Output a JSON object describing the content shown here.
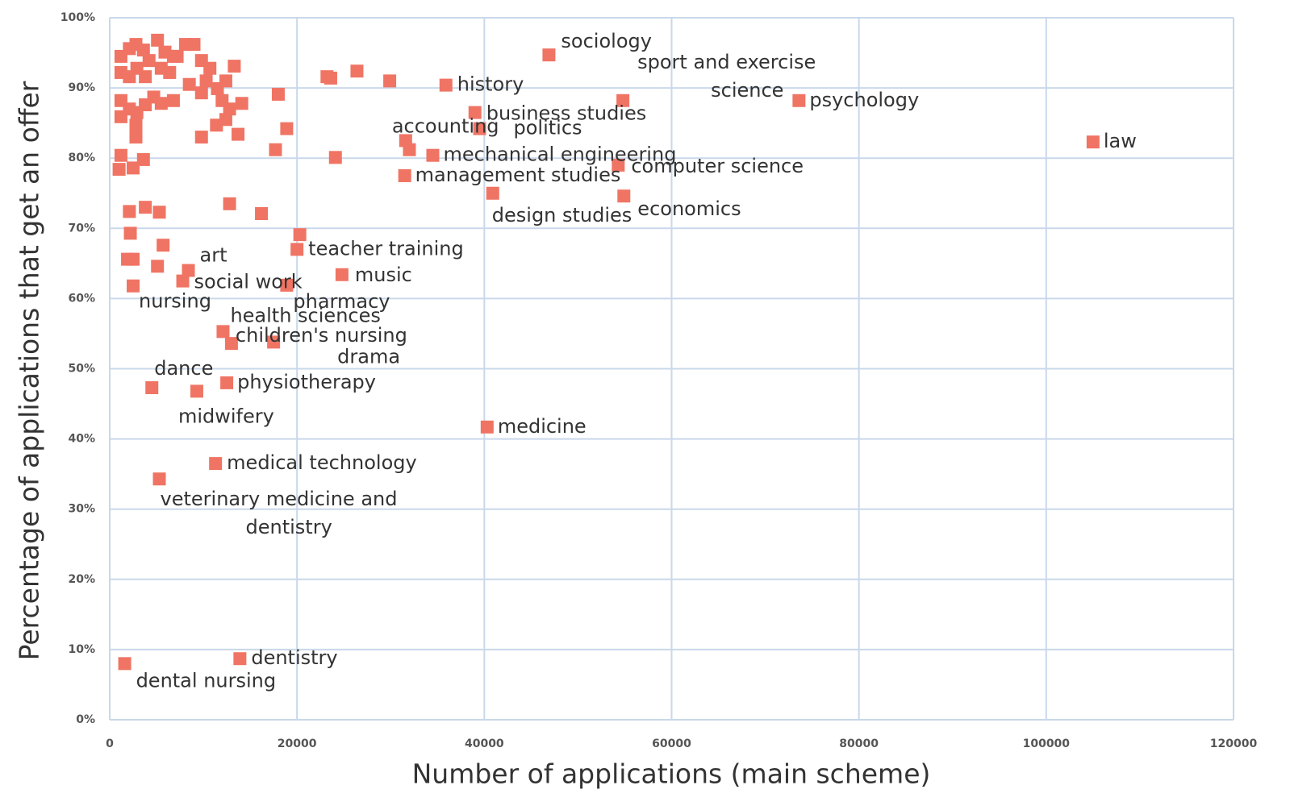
{
  "chart_data": {
    "type": "scatter",
    "xlabel": "Number of applications (main scheme)",
    "ylabel": "Percentage of applications that get an offer",
    "xlim": [
      0,
      120000
    ],
    "ylim": [
      0,
      100
    ],
    "xticks": [
      0,
      20000,
      40000,
      60000,
      80000,
      100000,
      120000
    ],
    "yticks": [
      {
        "value": 0,
        "label": "0%"
      },
      {
        "value": 10,
        "label": "10%"
      },
      {
        "value": 20,
        "label": "20%"
      },
      {
        "value": 30,
        "label": "30%"
      },
      {
        "value": 40,
        "label": "40%"
      },
      {
        "value": 50,
        "label": "50%"
      },
      {
        "value": 60,
        "label": "60%"
      },
      {
        "value": 70,
        "label": "70%"
      },
      {
        "value": 80,
        "label": "80%"
      },
      {
        "value": 90,
        "label": "90%"
      },
      {
        "value": 100,
        "label": "100%"
      }
    ],
    "grid": true,
    "color": "#f07464",
    "x": [
      46900,
      54800,
      73600,
      105000,
      35900,
      39000,
      31600,
      39500,
      34500,
      54300,
      31500,
      40900,
      54900,
      20000,
      8400,
      7800,
      24800,
      2500,
      18900,
      12100,
      13000,
      17500,
      4500,
      12500,
      9300,
      40300,
      11300,
      5300,
      13900,
      1600,
      1200,
      2100,
      2800,
      3600,
      4200,
      5100,
      5900,
      6800,
      8100,
      9000,
      9800,
      10700,
      1200,
      2100,
      2900,
      3800,
      5500,
      6400,
      7200,
      8500,
      10300,
      11500,
      12400,
      13300,
      1200,
      2100,
      2900,
      3800,
      4700,
      5500,
      6800,
      9800,
      12000,
      12800,
      14100,
      1200,
      2800,
      2800,
      9800,
      11400,
      12400,
      13700,
      18000,
      18900,
      23200,
      23600,
      26400,
      29900,
      1200,
      1000,
      2500,
      3600,
      17700,
      24100,
      32000,
      2100,
      3800,
      5300,
      12800,
      16200,
      2200,
      5700,
      1900,
      2500,
      5100,
      20300
    ],
    "values": [
      94.7,
      88.2,
      88.2,
      82.3,
      90.4,
      86.5,
      82.5,
      84.2,
      80.4,
      79.0,
      77.5,
      75.0,
      74.6,
      67.0,
      64.0,
      62.5,
      63.4,
      61.8,
      61.9,
      55.3,
      53.6,
      53.8,
      47.3,
      48.0,
      46.8,
      41.7,
      36.5,
      34.3,
      8.7,
      8.0,
      94.5,
      95.6,
      96.2,
      95.4,
      93.9,
      96.8,
      95.1,
      94.5,
      96.2,
      96.2,
      93.9,
      92.8,
      92.2,
      91.6,
      92.8,
      91.6,
      92.8,
      92.2,
      94.5,
      90.5,
      91.0,
      89.9,
      91.0,
      93.1,
      88.2,
      87.0,
      86.5,
      87.6,
      88.7,
      87.8,
      88.2,
      89.3,
      88.2,
      87.0,
      87.8,
      85.9,
      84.7,
      83.0,
      83.0,
      84.7,
      85.5,
      83.4,
      89.1,
      84.2,
      91.6,
      91.4,
      92.4,
      91.0,
      80.4,
      78.4,
      78.6,
      79.8,
      81.2,
      80.1,
      81.2,
      72.4,
      73.0,
      72.3,
      73.5,
      72.1,
      69.3,
      67.6,
      65.6,
      65.6,
      64.6,
      69.1
    ],
    "labels": [
      "sociology",
      "sport and exercise science",
      "psychology",
      "law",
      "history",
      "business studies",
      "accounting",
      "politics",
      "mechanical engineering",
      "computer science",
      "management studies",
      "design studies",
      "economics",
      "teacher training",
      "art",
      "social work",
      "music",
      "nursing",
      "pharmacy",
      "health sciences",
      "children's nursing",
      "drama",
      "dance",
      "physiotherapy",
      "midwifery",
      "medicine",
      "medical technology",
      "veterinary medicine and dentistry",
      "dentistry",
      "dental nursing",
      null,
      null,
      null,
      null,
      null,
      null,
      null,
      null,
      null,
      null,
      null,
      null,
      null,
      null,
      null,
      null,
      null,
      null,
      null,
      null,
      null,
      null,
      null,
      null,
      null,
      null,
      null,
      null,
      null,
      null,
      null,
      null,
      null,
      null,
      null,
      null,
      null,
      null,
      null,
      null,
      null,
      null,
      null,
      null,
      null,
      null,
      null,
      null,
      null,
      null,
      null,
      null,
      null,
      null,
      null,
      null,
      null,
      null,
      null,
      null,
      null,
      null,
      null,
      null,
      null,
      null
    ]
  }
}
